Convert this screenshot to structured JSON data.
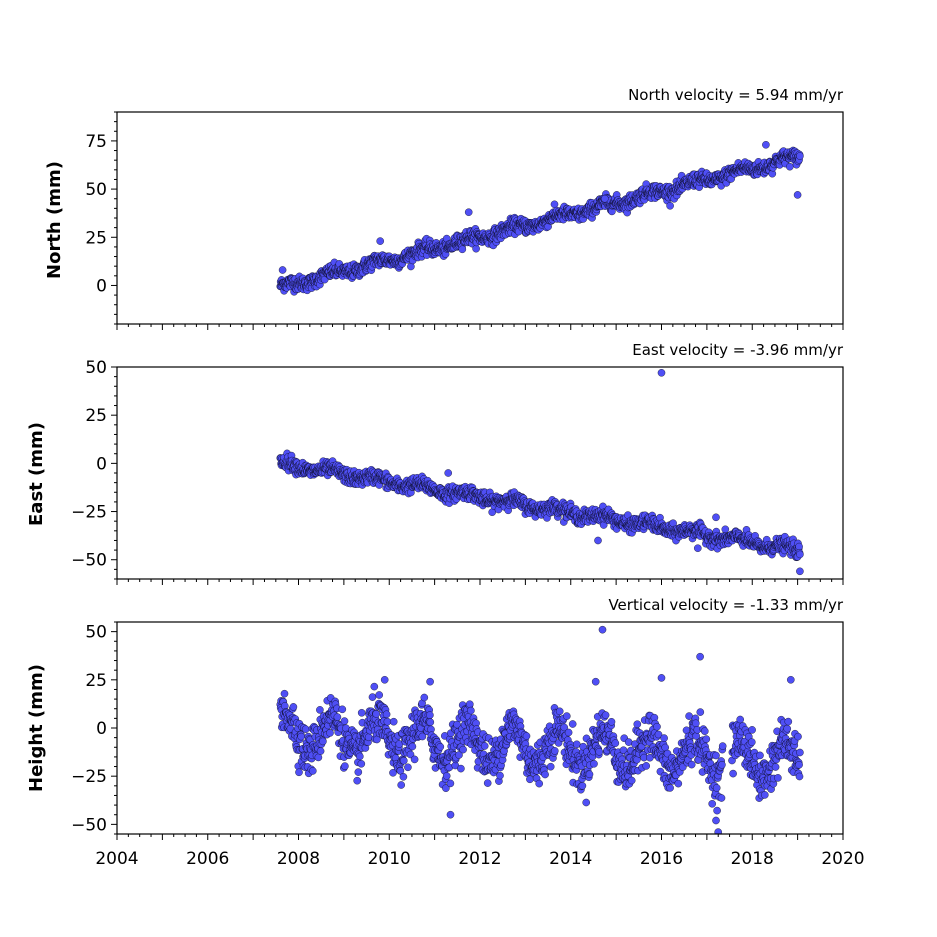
{
  "chart_data": {
    "type": "scatter",
    "point_color": "#4f4ff5",
    "point_edge_color": "#000000",
    "x_axis": {
      "range": [
        2004,
        2020
      ],
      "ticks": [
        2004,
        2006,
        2008,
        2010,
        2012,
        2014,
        2016,
        2018,
        2020
      ],
      "minor_tick_step": 0.25
    },
    "panels": [
      {
        "title": "North velocity = 5.94 mm/yr",
        "ylabel": "North (mm)",
        "ylim": [
          -20,
          90
        ],
        "yticks": [
          "0",
          "25",
          "50",
          "75"
        ],
        "ytick_values": [
          0,
          25,
          50,
          75
        ],
        "trend": {
          "start_year": 2007.6,
          "end_year": 2019.05,
          "start_value": -1,
          "rate_mm_per_yr": 5.94
        },
        "seasonal": {
          "amplitude": 1.5
        },
        "scatter_sd": 1.8,
        "outliers": [
          {
            "x": 2011.75,
            "y": 38
          },
          {
            "x": 2018.3,
            "y": 73
          },
          {
            "x": 2019.0,
            "y": 47
          },
          {
            "x": 2009.8,
            "y": 23
          },
          {
            "x": 2014.75,
            "y": 45
          },
          {
            "x": 2007.65,
            "y": 8
          }
        ]
      },
      {
        "title": "East velocity = -3.96 mm/yr",
        "ylabel": "East (mm)",
        "ylim": [
          -60,
          50
        ],
        "yticks": [
          "−50",
          "−25",
          "0",
          "25",
          "50"
        ],
        "ytick_values": [
          -50,
          -25,
          0,
          25,
          50
        ],
        "trend": {
          "start_year": 2007.6,
          "end_year": 2019.05,
          "start_value": 0,
          "rate_mm_per_yr": -3.96
        },
        "seasonal": {
          "amplitude": 1.5
        },
        "scatter_sd": 1.8,
        "outliers": [
          {
            "x": 2016.0,
            "y": 47
          },
          {
            "x": 2011.3,
            "y": -5
          },
          {
            "x": 2017.2,
            "y": -28
          },
          {
            "x": 2019.05,
            "y": -56
          },
          {
            "x": 2014.6,
            "y": -40
          },
          {
            "x": 2016.8,
            "y": -44
          }
        ]
      },
      {
        "title": "Vertical velocity = -1.33 mm/yr",
        "ylabel": "Height (mm)",
        "ylim": [
          -55,
          55
        ],
        "yticks": [
          "−50",
          "−25",
          "0",
          "25",
          "50"
        ],
        "ytick_values": [
          -50,
          -25,
          0,
          25,
          50
        ],
        "trend": {
          "start_year": 2007.6,
          "end_year": 2019.05,
          "start_value": -2,
          "rate_mm_per_yr": -1.33
        },
        "seasonal": {
          "amplitude": 10
        },
        "scatter_sd": 6,
        "gap": [
          2017.35,
          2017.55
        ],
        "outliers": [
          {
            "x": 2014.7,
            "y": 51
          },
          {
            "x": 2016.85,
            "y": 37
          },
          {
            "x": 2017.2,
            "y": -48
          },
          {
            "x": 2017.25,
            "y": -54
          },
          {
            "x": 2011.35,
            "y": -45
          },
          {
            "x": 2009.9,
            "y": 25
          },
          {
            "x": 2016.0,
            "y": 26
          },
          {
            "x": 2018.85,
            "y": 25
          },
          {
            "x": 2014.55,
            "y": 24
          },
          {
            "x": 2010.9,
            "y": 24
          }
        ]
      }
    ]
  }
}
